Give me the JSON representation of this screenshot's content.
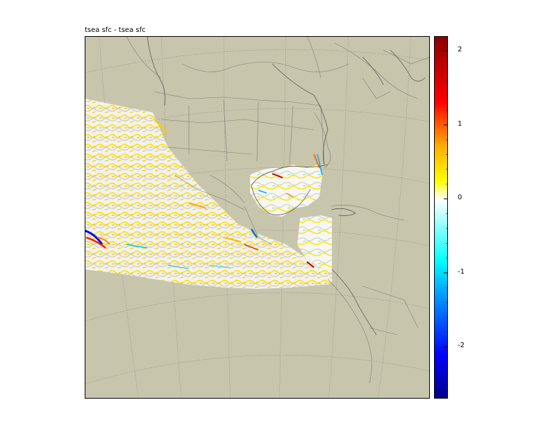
{
  "title": "tsea sfc - tsea sfc",
  "colorbar": {
    "ticks": [
      {
        "value": 2,
        "label": "2"
      },
      {
        "value": 1,
        "label": "1"
      },
      {
        "value": 0,
        "label": "0"
      },
      {
        "value": -1,
        "label": "-1"
      },
      {
        "value": -2,
        "label": "-2"
      }
    ],
    "range": [
      -2.7,
      2.2
    ],
    "colors": [
      "#00008b",
      "#0000ff",
      "#00aaff",
      "#00ffff",
      "#ffffff",
      "#ffff00",
      "#ffaa00",
      "#ff0000",
      "#8b0000"
    ]
  },
  "map": {
    "land_color": "#c8c5ad",
    "data_region": "Eastern Pacific, Gulf of Mexico and Caribbean",
    "projection": "Lambert conformal"
  }
}
